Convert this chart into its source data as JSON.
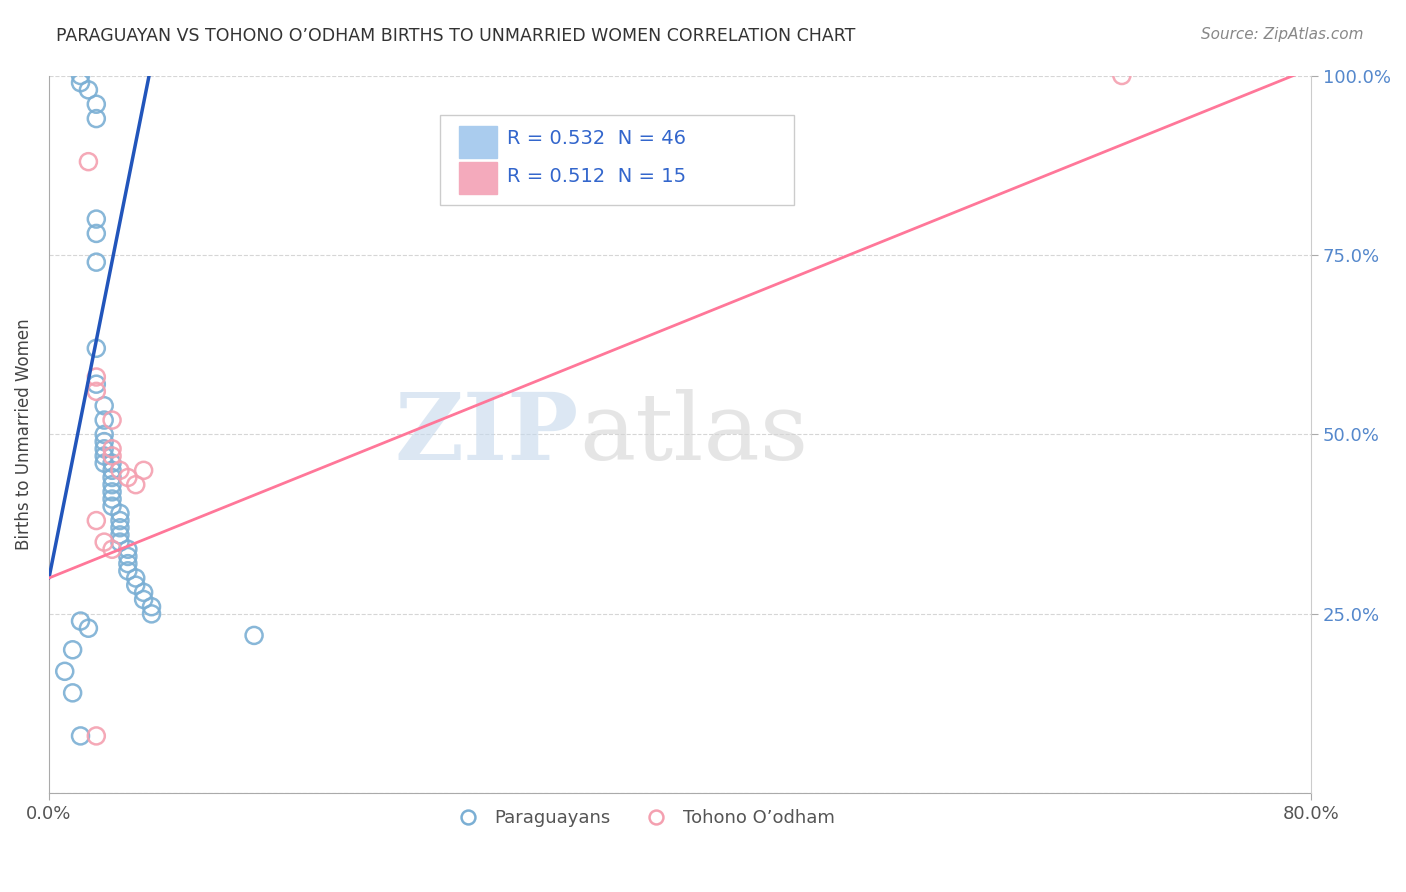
{
  "title": "PARAGUAYAN VS TOHONO O’ODHAM BIRTHS TO UNMARRIED WOMEN CORRELATION CHART",
  "source": "Source: ZipAtlas.com",
  "ylabel": "Births to Unmarried Women",
  "xlim": [
    0.0,
    0.8
  ],
  "ylim": [
    0.0,
    1.0
  ],
  "watermark_zip": "ZIP",
  "watermark_atlas": "atlas",
  "legend1_label": "R = 0.532  N = 46",
  "legend2_label": "R = 0.512  N = 15",
  "blue_scatter_color": "#7BAFD4",
  "pink_scatter_color": "#F4A0B0",
  "blue_line_color": "#2255BB",
  "pink_line_color": "#FF7799",
  "blue_line_x": [
    0.0,
    0.068
  ],
  "blue_line_y": [
    0.3,
    1.05
  ],
  "pink_line_x": [
    0.0,
    0.8
  ],
  "pink_line_y": [
    0.3,
    1.01
  ],
  "paraguayan_x": [
    0.02,
    0.02,
    0.025,
    0.03,
    0.03,
    0.03,
    0.03,
    0.03,
    0.03,
    0.03,
    0.035,
    0.035,
    0.035,
    0.035,
    0.035,
    0.035,
    0.035,
    0.04,
    0.04,
    0.04,
    0.04,
    0.04,
    0.04,
    0.04,
    0.045,
    0.045,
    0.045,
    0.045,
    0.045,
    0.05,
    0.05,
    0.05,
    0.05,
    0.055,
    0.055,
    0.06,
    0.06,
    0.065,
    0.065,
    0.02,
    0.025,
    0.13,
    0.015,
    0.01,
    0.015,
    0.02
  ],
  "paraguayan_y": [
    1.0,
    0.99,
    0.98,
    0.96,
    0.94,
    0.8,
    0.78,
    0.74,
    0.62,
    0.57,
    0.54,
    0.52,
    0.5,
    0.49,
    0.48,
    0.47,
    0.46,
    0.46,
    0.45,
    0.44,
    0.43,
    0.42,
    0.41,
    0.4,
    0.39,
    0.38,
    0.37,
    0.36,
    0.35,
    0.34,
    0.33,
    0.32,
    0.31,
    0.3,
    0.29,
    0.28,
    0.27,
    0.26,
    0.25,
    0.24,
    0.23,
    0.22,
    0.2,
    0.17,
    0.14,
    0.08
  ],
  "tohono_x": [
    0.025,
    0.03,
    0.03,
    0.04,
    0.04,
    0.04,
    0.045,
    0.05,
    0.055,
    0.06,
    0.03,
    0.035,
    0.04,
    0.03,
    0.68
  ],
  "tohono_y": [
    0.88,
    0.58,
    0.56,
    0.52,
    0.48,
    0.47,
    0.45,
    0.44,
    0.43,
    0.45,
    0.38,
    0.35,
    0.34,
    0.08,
    1.0
  ],
  "right_ytick_vals": [
    0.25,
    0.5,
    0.75,
    1.0
  ],
  "right_ytick_labels": [
    "25.0%",
    "50.0%",
    "75.0%",
    "100.0%"
  ],
  "ytick_color": "#5588CC",
  "grid_color": "#CCCCCC",
  "title_color": "#333333",
  "source_color": "#888888",
  "bottom_legend_color": "#555555"
}
